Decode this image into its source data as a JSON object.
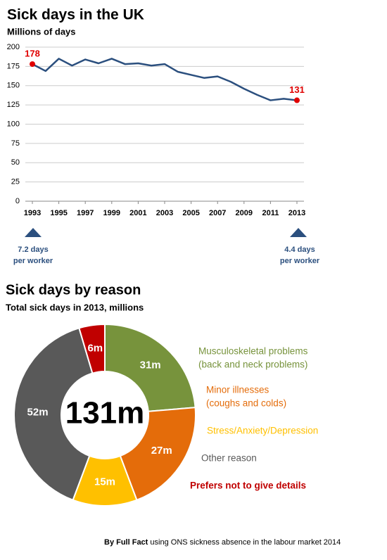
{
  "chart_data": [
    {
      "type": "line",
      "title": "Sick days in the UK",
      "subtitle": "Millions of days",
      "x": [
        1993,
        1994,
        1995,
        1996,
        1997,
        1998,
        1999,
        2000,
        2001,
        2002,
        2003,
        2004,
        2005,
        2006,
        2007,
        2008,
        2009,
        2010,
        2011,
        2012,
        2013
      ],
      "values": [
        178,
        169,
        185,
        176,
        184,
        179,
        185,
        178,
        179,
        176,
        178,
        168,
        164,
        160,
        162,
        155,
        146,
        138,
        131,
        133,
        131
      ],
      "color": "#2b4f7e",
      "label_color": "#e00000",
      "xlim": [
        1993,
        2013
      ],
      "xticks": [
        1993,
        1995,
        1997,
        1999,
        2001,
        2003,
        2005,
        2007,
        2009,
        2011,
        2013
      ],
      "ylim": [
        0,
        200
      ],
      "yticks": [
        0,
        25,
        50,
        75,
        100,
        125,
        150,
        175,
        200
      ],
      "grid": true,
      "annotations": [
        [
          "7.2 days",
          "per worker"
        ],
        [
          "4.4 days",
          "per worker"
        ]
      ],
      "annotation_color": "#2b4f7e"
    },
    {
      "type": "pie",
      "title": "Sick days by reason",
      "subtitle": "Total sick days in 2013, millions",
      "center_label": "131m",
      "categories": [
        "Musculoskeletal problems",
        "Minor illnesses",
        "Stress/Anxiety/Depression",
        "Other reason",
        "Prefers not to give details"
      ],
      "category_notes": [
        "(back and neck problems)",
        "(coughs and colds)",
        null,
        null,
        null
      ],
      "values": [
        31,
        27,
        15,
        52,
        6
      ],
      "value_labels": [
        "31m",
        "27m",
        "15m",
        "52m",
        "6m"
      ],
      "colors": [
        "#77933c",
        "#e46c0a",
        "#ffc000",
        "#595959",
        "#c00000"
      ]
    }
  ],
  "footer": {
    "by": "By Full Fact",
    "text": "using ONS sickness absence in the labour market 2014"
  }
}
